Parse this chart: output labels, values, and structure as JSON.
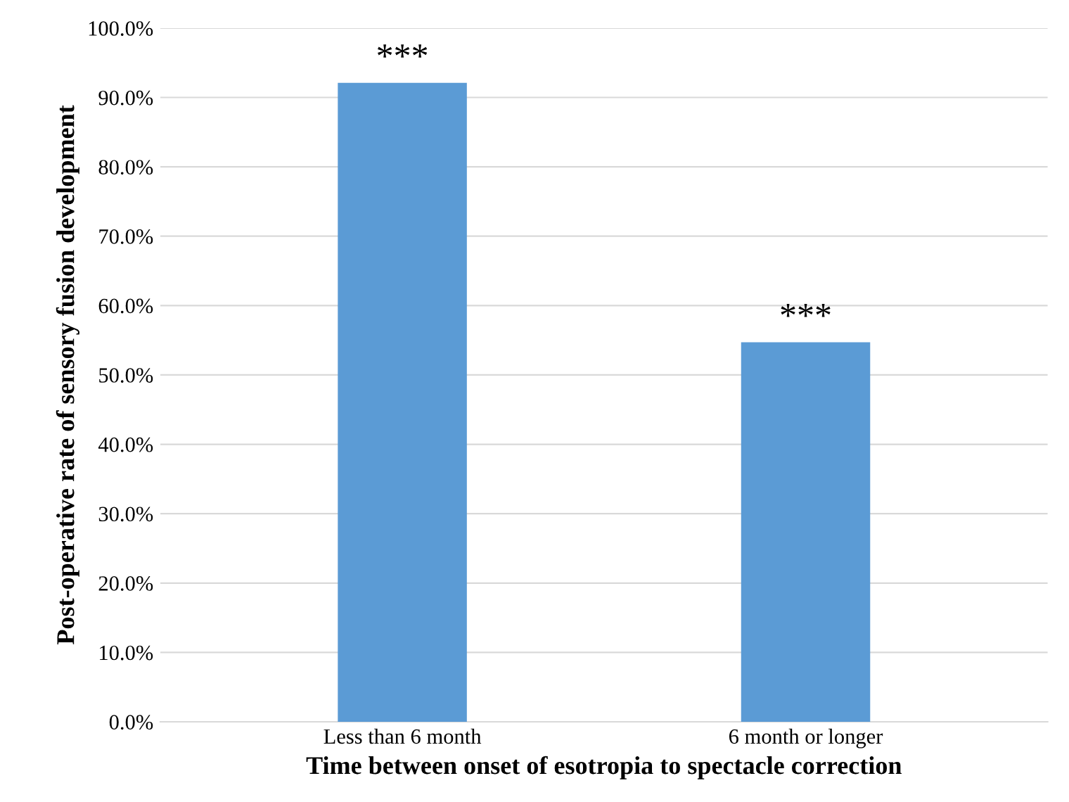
{
  "chart_data": {
    "type": "bar",
    "xlabel": "Time between onset of esotropia to spectacle correction",
    "ylabel": "Post-operative rate of sensory fusion development",
    "categories": [
      "Less than 6 month",
      "6 month or longer"
    ],
    "values": [
      92.1,
      54.7
    ],
    "color": "#5b9bd5",
    "ylim": [
      0,
      100
    ],
    "yticks": [
      {
        "value": 0,
        "label": "0.0%"
      },
      {
        "value": 10,
        "label": "10.0%"
      },
      {
        "value": 20,
        "label": "20.0%"
      },
      {
        "value": 30,
        "label": "30.0%"
      },
      {
        "value": 40,
        "label": "40.0%"
      },
      {
        "value": 50,
        "label": "50.0%"
      },
      {
        "value": 60,
        "label": "60.0%"
      },
      {
        "value": 70,
        "label": "70.0%"
      },
      {
        "value": 80,
        "label": "80.0%"
      },
      {
        "value": 90,
        "label": "90.0%"
      },
      {
        "value": 100,
        "label": "100.0%"
      }
    ],
    "grid": "y",
    "annotations": [
      {
        "text": "***",
        "x": "Less than 6 month",
        "y": 92.1
      },
      {
        "text": "***",
        "x": "6 month or longer",
        "y": 54.7
      }
    ]
  }
}
